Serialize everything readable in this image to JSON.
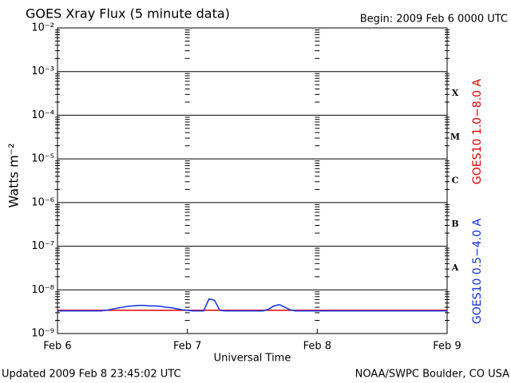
{
  "chart_data": {
    "type": "line",
    "title": "GOES Xray Flux (5 minute data)",
    "subtitle": "Begin:  2009 Feb 6 0000 UTC",
    "x_label": "Universal Time",
    "y_label": "Watts m⁻²",
    "footer_left": "Updated 2009 Feb  8 23:45:02 UTC",
    "footer_right": "NOAA/SWPC Boulder, CO USA",
    "flare_classes": [
      "X",
      "M",
      "C",
      "B",
      "A"
    ],
    "log_scale": true,
    "grid": true,
    "xlim": [
      0,
      72
    ],
    "xticks": [
      {
        "value": 0,
        "label": "Feb 6"
      },
      {
        "value": 24,
        "label": "Feb 7"
      },
      {
        "value": 48,
        "label": "Feb 8"
      },
      {
        "value": 72,
        "label": "Feb 9"
      }
    ],
    "ylim": [
      1e-09,
      0.01
    ],
    "yticks": [
      {
        "value": 0.01,
        "label": "10⁻²"
      },
      {
        "value": 0.001,
        "label": "10⁻³"
      },
      {
        "value": 0.0001,
        "label": "10⁻⁴"
      },
      {
        "value": 1e-05,
        "label": "10⁻⁵"
      },
      {
        "value": 1e-06,
        "label": "10⁻⁶"
      },
      {
        "value": 1e-07,
        "label": "10⁻⁷"
      },
      {
        "value": 1e-08,
        "label": "10⁻⁸"
      },
      {
        "value": 1e-09,
        "label": "10⁻⁹"
      }
    ],
    "x": [
      0,
      1,
      2,
      3,
      4,
      5,
      6,
      7,
      8,
      9,
      10,
      11,
      12,
      13,
      14,
      15,
      16,
      17,
      18,
      19,
      20,
      21,
      22,
      23,
      24,
      25,
      26,
      27,
      28,
      29,
      30,
      31,
      32,
      33,
      34,
      35,
      36,
      37,
      38,
      39,
      40,
      41,
      42,
      43,
      44,
      45,
      46,
      47,
      48,
      49,
      50,
      51,
      52,
      53,
      54,
      55,
      56,
      57,
      58,
      59,
      60,
      61,
      62,
      63,
      64,
      65,
      66,
      67,
      68,
      69,
      70,
      71,
      72
    ],
    "series": [
      {
        "name": "GOES10 1.0−8.0 A",
        "color": "#e00000",
        "values": [
          3.4e-09,
          3.4e-09,
          3.4e-09,
          3.4e-09,
          3.4e-09,
          3.4e-09,
          3.4e-09,
          3.4e-09,
          3.4e-09,
          3.4e-09,
          3.4e-09,
          3.4e-09,
          3.4e-09,
          3.4e-09,
          3.4e-09,
          3.4e-09,
          3.4e-09,
          3.4e-09,
          3.4e-09,
          3.4e-09,
          3.4e-09,
          3.4e-09,
          3.4e-09,
          3.4e-09,
          3.4e-09,
          3.4e-09,
          3.4e-09,
          3.4e-09,
          3.4e-09,
          3.4e-09,
          3.4e-09,
          3.4e-09,
          3.4e-09,
          3.4e-09,
          3.4e-09,
          3.4e-09,
          3.4e-09,
          3.4e-09,
          3.4e-09,
          3.4e-09,
          3.4e-09,
          3.4e-09,
          3.4e-09,
          3.4e-09,
          3.4e-09,
          3.4e-09,
          3.4e-09,
          3.4e-09,
          3.4e-09,
          3.4e-09,
          3.4e-09,
          3.4e-09,
          3.4e-09,
          3.4e-09,
          3.4e-09,
          3.4e-09,
          3.4e-09,
          3.4e-09,
          3.4e-09,
          3.4e-09,
          3.4e-09,
          3.4e-09,
          3.4e-09,
          3.4e-09,
          3.4e-09,
          3.4e-09,
          3.4e-09,
          3.4e-09,
          3.4e-09,
          3.4e-09,
          3.4e-09,
          3.4e-09,
          3.4e-09
        ]
      },
      {
        "name": "GOES10 0.5−4.0 A",
        "color": "#1030e0",
        "values": [
          3.3e-09,
          3.3e-09,
          3.3e-09,
          3.3e-09,
          3.3e-09,
          3.3e-09,
          3.3e-09,
          3.3e-09,
          3.3e-09,
          3.4e-09,
          3.6e-09,
          3.8e-09,
          4e-09,
          4.2e-09,
          4.3e-09,
          4.4e-09,
          4.4e-09,
          4.3e-09,
          4.3e-09,
          4.2e-09,
          4e-09,
          3.9e-09,
          3.7e-09,
          3.5e-09,
          3.4e-09,
          3.3e-09,
          3.3e-09,
          3.3e-09,
          6.2e-09,
          5.8e-09,
          3.4e-09,
          3.3e-09,
          3.3e-09,
          3.3e-09,
          3.3e-09,
          3.3e-09,
          3.3e-09,
          3.3e-09,
          3.3e-09,
          3.6e-09,
          4.3e-09,
          4.6e-09,
          4e-09,
          3.5e-09,
          3.3e-09,
          3.3e-09,
          3.3e-09,
          3.3e-09,
          3.3e-09,
          3.3e-09,
          3.3e-09,
          3.3e-09,
          3.3e-09,
          3.3e-09,
          3.3e-09,
          3.3e-09,
          3.3e-09,
          3.3e-09,
          3.3e-09,
          3.3e-09,
          3.3e-09,
          3.3e-09,
          3.3e-09,
          3.3e-09,
          3.3e-09,
          3.3e-09,
          3.3e-09,
          3.3e-09,
          3.3e-09,
          3.3e-09,
          3.3e-09,
          3.3e-09,
          3.3e-09
        ]
      }
    ]
  }
}
